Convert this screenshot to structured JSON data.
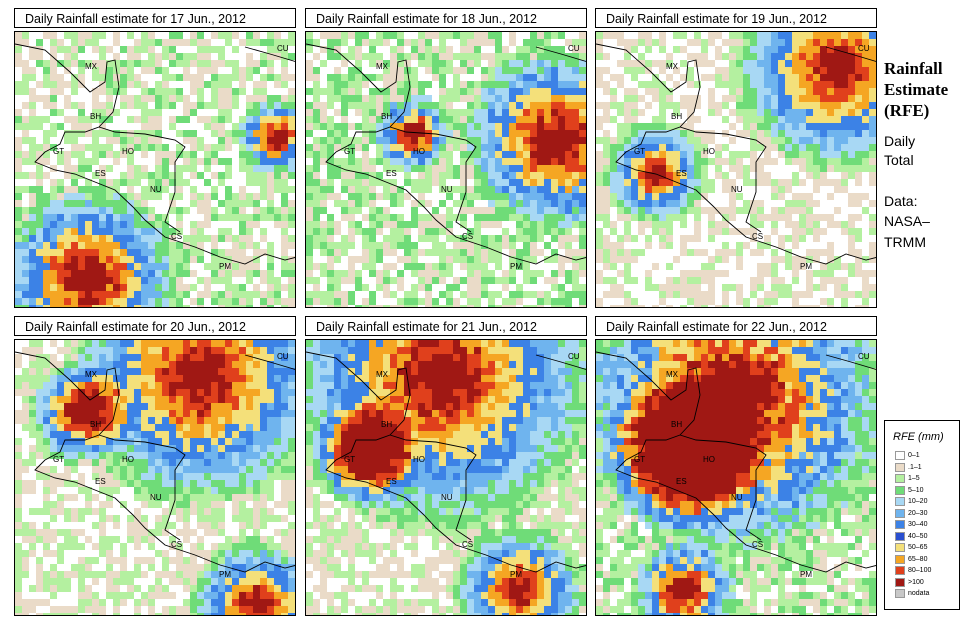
{
  "panels": [
    {
      "title": "Daily Rainfall estimate for  17 Jun., 2012",
      "intensity": 0.45,
      "hot": [
        [
          0.25,
          0.88,
          0.35
        ],
        [
          0.92,
          0.37,
          0.15
        ]
      ]
    },
    {
      "title": "Daily Rainfall estimate for  18 Jun., 2012",
      "intensity": 0.5,
      "hot": [
        [
          0.88,
          0.38,
          0.35
        ],
        [
          0.37,
          0.36,
          0.15
        ]
      ]
    },
    {
      "title": "Daily Rainfall estimate for  19 Jun., 2012",
      "intensity": 0.3,
      "hot": [
        [
          0.85,
          0.12,
          0.4
        ],
        [
          0.2,
          0.5,
          0.2
        ]
      ]
    },
    {
      "title": "Daily Rainfall estimate for  20 Jun., 2012",
      "intensity": 0.35,
      "hot": [
        [
          0.65,
          0.12,
          0.5
        ],
        [
          0.22,
          0.25,
          0.2
        ],
        [
          0.85,
          0.95,
          0.25
        ]
      ]
    },
    {
      "title": "Daily Rainfall estimate for  21 Jun., 2012",
      "intensity": 0.35,
      "hot": [
        [
          0.47,
          0.12,
          0.6
        ],
        [
          0.2,
          0.4,
          0.2
        ],
        [
          0.75,
          0.9,
          0.25
        ]
      ]
    },
    {
      "title": "Daily Rainfall estimate for  22 Jun., 2012",
      "intensity": 0.5,
      "hot": [
        [
          0.48,
          0.2,
          0.6
        ],
        [
          0.3,
          0.4,
          0.3
        ],
        [
          0.3,
          0.9,
          0.2
        ]
      ]
    }
  ],
  "country_labels": [
    "MX",
    "BH",
    "GT",
    "HO",
    "ES",
    "NU",
    "CS",
    "PM",
    "CU"
  ],
  "side": {
    "title_lines": [
      "Rainfall",
      "Estimate",
      "(RFE)"
    ],
    "daily": "Daily",
    "total": "Total",
    "data": "Data:",
    "source1": "NASA–",
    "source2": "TRMM"
  },
  "legend": {
    "title": "RFE (mm)",
    "items": [
      {
        "label": "0–1",
        "color": "#ffffff"
      },
      {
        "label": ".1–1",
        "color": "#eadbc8"
      },
      {
        "label": "1–5",
        "color": "#b4f0a0"
      },
      {
        "label": "5–10",
        "color": "#6fdc78"
      },
      {
        "label": "10–20",
        "color": "#a8d8f4"
      },
      {
        "label": "20–30",
        "color": "#6fb4ee"
      },
      {
        "label": "30–40",
        "color": "#3c82e6"
      },
      {
        "label": "40–50",
        "color": "#2a4fd0"
      },
      {
        "label": "50–65",
        "color": "#f4e07a"
      },
      {
        "label": "65–80",
        "color": "#f5a623"
      },
      {
        "label": "80–100",
        "color": "#e0401c"
      },
      {
        "label": ">100",
        "color": "#a01814"
      },
      {
        "label": "nodata",
        "color": "#c8c8c8"
      }
    ]
  }
}
